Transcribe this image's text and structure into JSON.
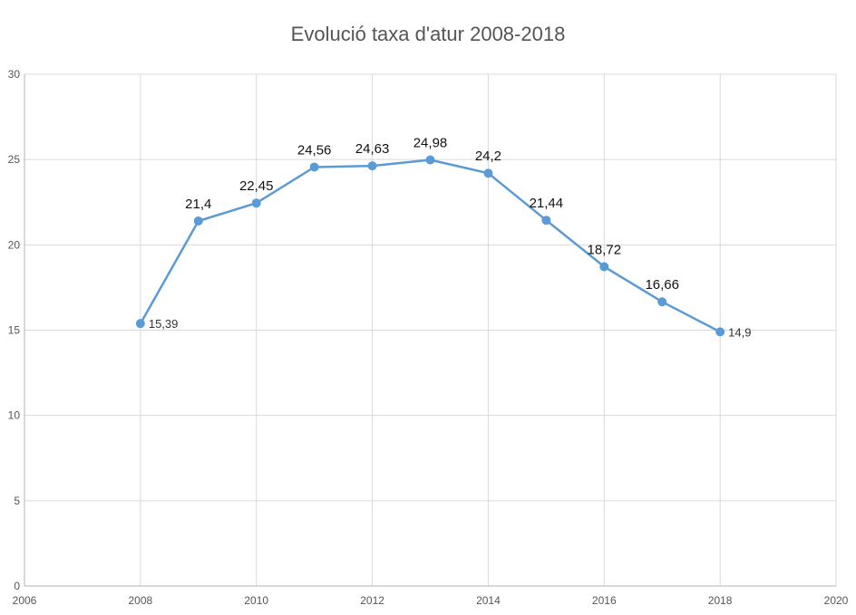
{
  "chart_data": {
    "type": "scatter",
    "mode": "lines+markers",
    "title": "Evolució taxa d'atur 2008-2018",
    "xlabel": "",
    "ylabel": "",
    "xlim": [
      2006,
      2020
    ],
    "ylim": [
      0,
      30
    ],
    "x_ticks": [
      "2006",
      "2008",
      "2010",
      "2012",
      "2014",
      "2016",
      "2018",
      "2020"
    ],
    "y_ticks": [
      "0",
      "5",
      "10",
      "15",
      "20",
      "25",
      "30"
    ],
    "grid": true,
    "legend": "none",
    "series": [
      {
        "color": "#5b9bd5",
        "x": [
          2008,
          2009,
          2010,
          2011,
          2012,
          2013,
          2014,
          2015,
          2016,
          2017,
          2018
        ],
        "y": [
          15.39,
          21.4,
          22.45,
          24.56,
          24.63,
          24.98,
          24.2,
          21.44,
          18.72,
          16.66,
          14.9
        ],
        "labels": [
          "15,39",
          "21,4",
          "22,45",
          "24,56",
          "24,63",
          "24,98",
          "24,2",
          "21,44",
          "18,72",
          "16,66",
          "14,9"
        ]
      }
    ]
  }
}
